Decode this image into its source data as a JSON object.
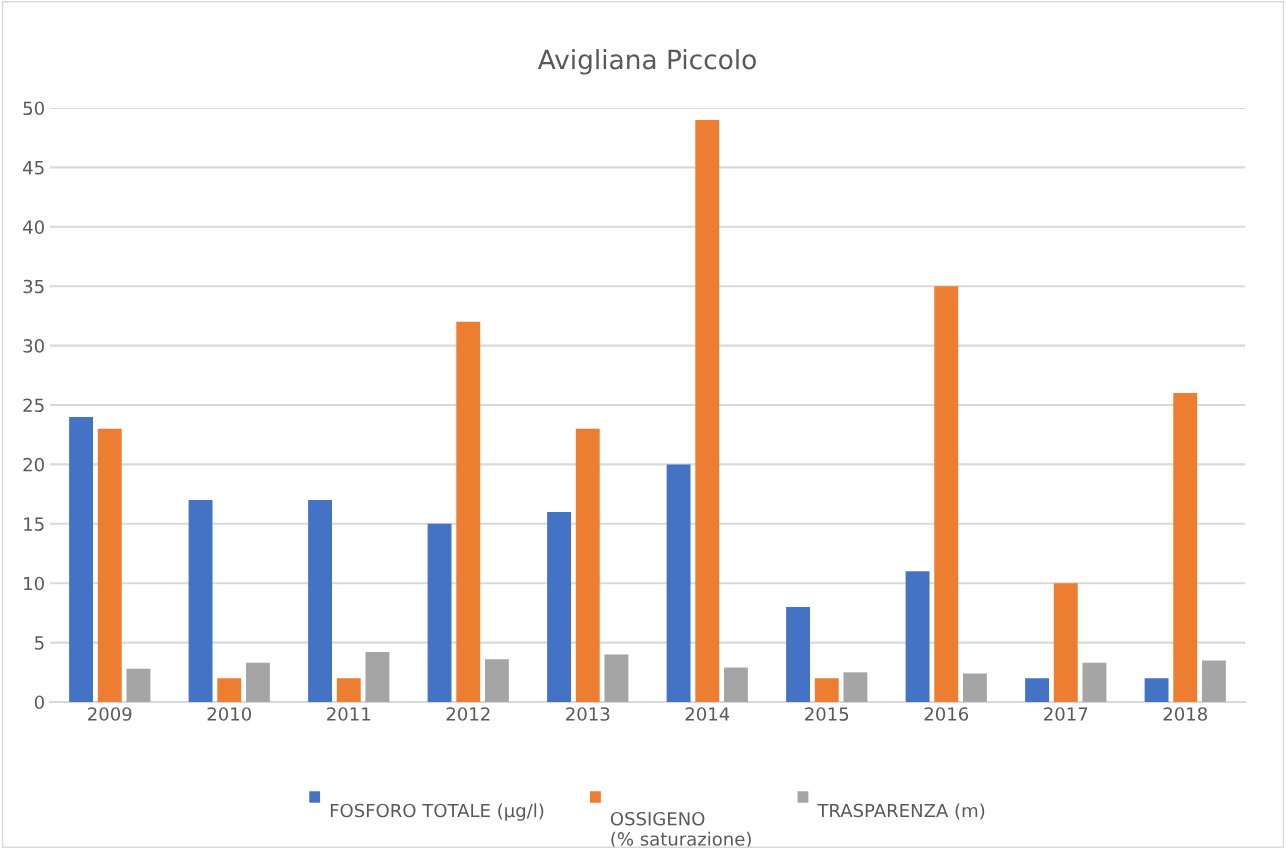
{
  "chart_data": {
    "type": "bar",
    "title": "Avigliana Piccolo",
    "categories": [
      "2009",
      "2010",
      "2011",
      "2012",
      "2013",
      "2014",
      "2015",
      "2016",
      "2017",
      "2018"
    ],
    "series": [
      {
        "name": "FOSFORO TOTALE (µg/l)",
        "color": "#4472c4",
        "values": [
          24,
          17,
          17,
          15,
          16,
          20,
          8,
          11,
          2,
          2
        ]
      },
      {
        "name": "OSSIGENO\n(% saturazione)",
        "color": "#ed7d31",
        "values": [
          23,
          2,
          2,
          32,
          23,
          49,
          2,
          35,
          10,
          26
        ]
      },
      {
        "name": "TRASPARENZA (m)",
        "color": "#a5a5a5",
        "values": [
          2.8,
          3.3,
          4.2,
          3.6,
          4.0,
          2.9,
          2.5,
          2.4,
          3.3,
          3.5
        ]
      }
    ],
    "ylim": [
      0,
      50
    ],
    "yticks": [
      0,
      5,
      10,
      15,
      20,
      25,
      30,
      35,
      40,
      45,
      50
    ],
    "grid": "y",
    "legend": "bottom"
  }
}
